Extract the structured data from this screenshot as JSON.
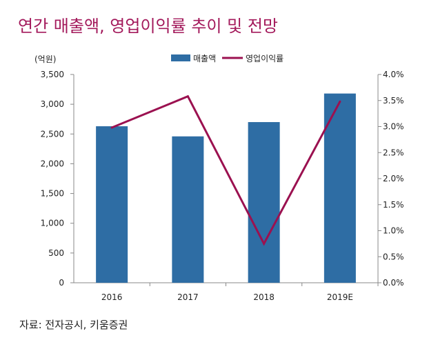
{
  "title": "연간 매출액, 영업이익률 추이 및 전망",
  "source": "자료: 전자공시, 키움증권",
  "colors": {
    "bar": "#2e6da4",
    "line": "#9b1150",
    "title": "#a3195b"
  },
  "chart_data": {
    "type": "bar+line",
    "categories": [
      "2016",
      "2017",
      "2018",
      "2019E"
    ],
    "series": [
      {
        "name": "매출액",
        "type": "bar",
        "axis": "left",
        "values": [
          2630,
          2460,
          2700,
          3180
        ]
      },
      {
        "name": "영업이익률",
        "type": "line",
        "axis": "right",
        "values": [
          2.98,
          3.58,
          0.75,
          3.48
        ]
      }
    ],
    "left_unit": "(억원)",
    "ylim_left": [
      0,
      3500
    ],
    "ylim_right": [
      0,
      4.0
    ],
    "left_ticks": [
      "0",
      "500",
      "1,000",
      "1,500",
      "2,000",
      "2,500",
      "3,000",
      "3,500"
    ],
    "right_ticks": [
      "0.0%",
      "0.5%",
      "1.0%",
      "1.5%",
      "2.0%",
      "2.5%",
      "3.0%",
      "3.5%",
      "4.0%"
    ],
    "legend_position": "top-center",
    "grid": false
  }
}
